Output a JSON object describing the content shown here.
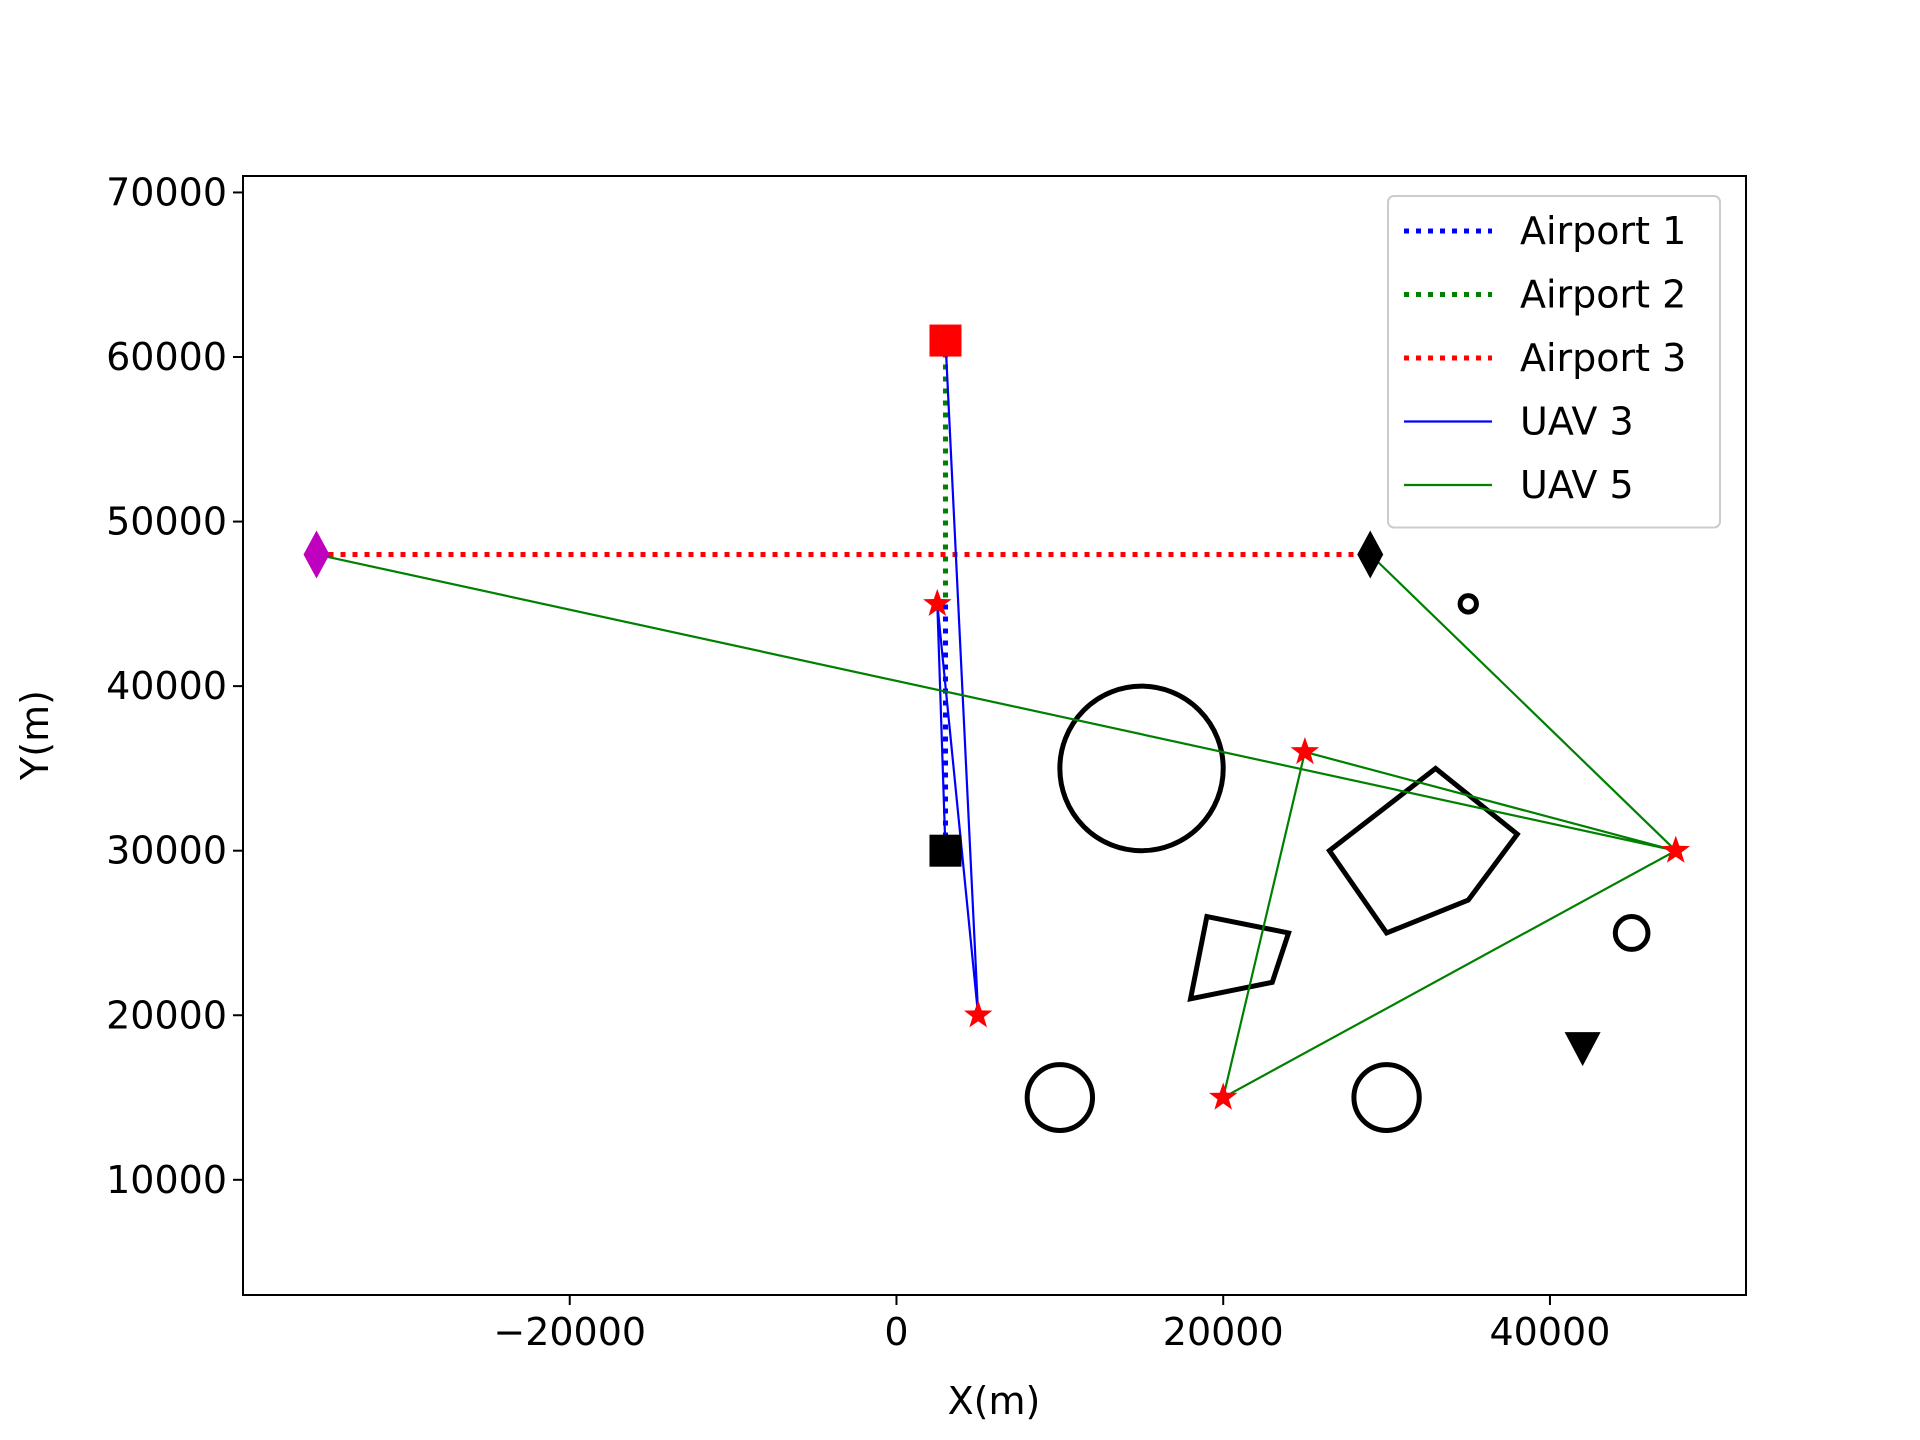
{
  "chart_data": {
    "type": "line",
    "title": "",
    "xlabel": "X(m)",
    "ylabel": "Y(m)",
    "xlim": [
      -40000,
      52000
    ],
    "ylim": [
      3000,
      71000
    ],
    "xticks": [
      -20000,
      0,
      20000,
      40000
    ],
    "yticks": [
      10000,
      20000,
      30000,
      40000,
      50000,
      60000,
      70000
    ],
    "grid": false,
    "legend_position": "top-right",
    "series": [
      {
        "name": "Airport 1",
        "style": "dotted",
        "color": "#0000ff",
        "points": [
          [
            3000,
            61000
          ],
          [
            3000,
            30000
          ]
        ]
      },
      {
        "name": "Airport 2",
        "style": "dotted",
        "color": "#008000",
        "points": [
          [
            3000,
            61000
          ],
          [
            3000,
            45000
          ]
        ]
      },
      {
        "name": "Airport 3",
        "style": "dotted",
        "color": "#ff0000",
        "points": [
          [
            -35500,
            48000
          ],
          [
            29000,
            48000
          ]
        ]
      },
      {
        "name": "UAV 3",
        "style": "solid",
        "color": "#0000ff",
        "points": [
          [
            3000,
            30000
          ],
          [
            2500,
            45000
          ],
          [
            5000,
            20000
          ],
          [
            3000,
            61000
          ]
        ]
      },
      {
        "name": "UAV 5",
        "style": "solid",
        "color": "#008000",
        "points": [
          [
            -35500,
            48000
          ],
          [
            47700,
            30000
          ],
          [
            20000,
            15000
          ],
          [
            25000,
            36000
          ],
          [
            47700,
            30000
          ],
          [
            29000,
            48000
          ]
        ]
      }
    ],
    "markers": [
      {
        "shape": "square",
        "color": "#ff0000",
        "x": 3000,
        "y": 61000
      },
      {
        "shape": "square",
        "color": "#000000",
        "x": 3000,
        "y": 30000
      },
      {
        "shape": "diamond",
        "color": "#bf00bf",
        "x": -35500,
        "y": 48000
      },
      {
        "shape": "diamond",
        "color": "#000000",
        "x": 29000,
        "y": 48000
      },
      {
        "shape": "triangle-down",
        "color": "#000000",
        "x": 42000,
        "y": 18000
      },
      {
        "shape": "star",
        "color": "#ff0000",
        "x": 2500,
        "y": 45000
      },
      {
        "shape": "star",
        "color": "#ff0000",
        "x": 5000,
        "y": 20000
      },
      {
        "shape": "star",
        "color": "#ff0000",
        "x": 25000,
        "y": 36000
      },
      {
        "shape": "star",
        "color": "#ff0000",
        "x": 47700,
        "y": 30000
      },
      {
        "shape": "star",
        "color": "#ff0000",
        "x": 20000,
        "y": 15000
      }
    ],
    "obstacles": {
      "circles": [
        {
          "cx": 15000,
          "cy": 35000,
          "r": 5000
        },
        {
          "cx": 10000,
          "cy": 15000,
          "r": 2000
        },
        {
          "cx": 30000,
          "cy": 15000,
          "r": 2000
        },
        {
          "cx": 45000,
          "cy": 25000,
          "r": 1000
        },
        {
          "cx": 35000,
          "cy": 45000,
          "r": 500
        }
      ],
      "polygons": [
        [
          [
            33000,
            35000
          ],
          [
            38000,
            31000
          ],
          [
            35000,
            27000
          ],
          [
            30000,
            25000
          ],
          [
            26500,
            30000
          ]
        ],
        [
          [
            19000,
            26000
          ],
          [
            24000,
            25000
          ],
          [
            23000,
            22000
          ],
          [
            18000,
            21000
          ]
        ]
      ]
    }
  }
}
